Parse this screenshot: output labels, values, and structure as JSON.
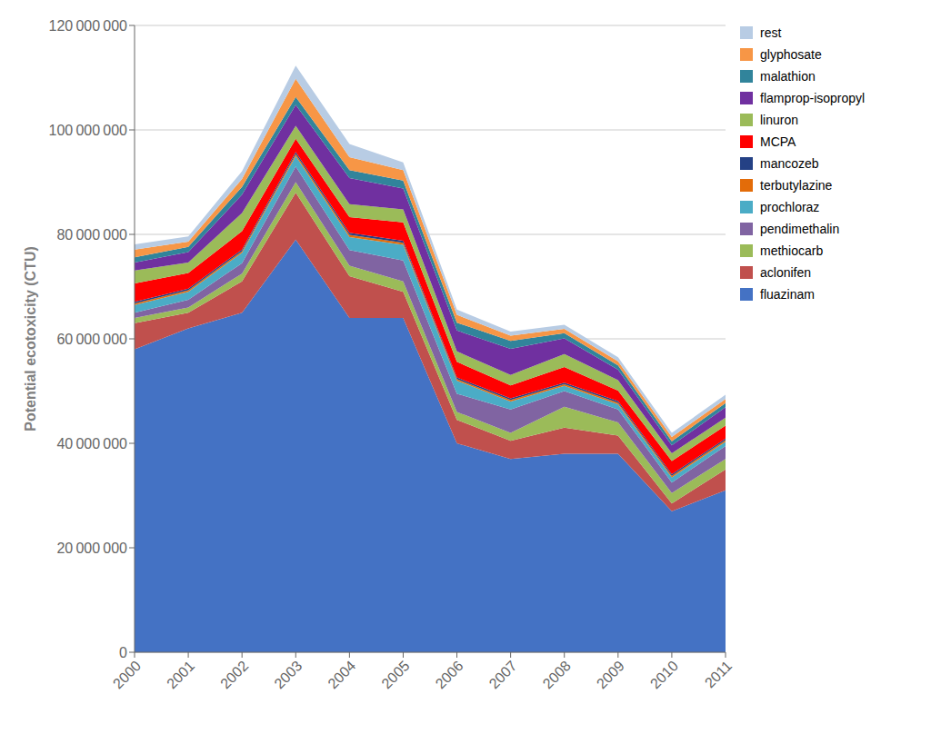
{
  "chart_data": {
    "type": "area",
    "stacked": true,
    "y_label": "Potential ecotoxicity (CTU)",
    "x": [
      2000,
      2001,
      2002,
      2003,
      2004,
      2005,
      2006,
      2007,
      2008,
      2009,
      2010,
      2011
    ],
    "xlim": [
      2000,
      2011
    ],
    "xticks": [
      2000,
      2001,
      2002,
      2003,
      2004,
      2005,
      2006,
      2007,
      2008,
      2009,
      2010,
      2011
    ],
    "ylim": [
      0,
      120000000
    ],
    "yticks": [
      0,
      {
        "value": 20000000,
        "label": "20 000 000"
      },
      {
        "value": 40000000,
        "label": "40 000 000"
      },
      {
        "value": 60000000,
        "label": "60 000 000"
      },
      {
        "value": 80000000,
        "label": "80 000 000"
      },
      {
        "value": 100000000,
        "label": "100 000 000"
      },
      {
        "value": 120000000,
        "label": "120 000 000"
      }
    ],
    "grid": true,
    "legend": "right",
    "series": [
      {
        "name": "fluazinam",
        "color": "#4472C4",
        "values": [
          58000000,
          62000000,
          65000000,
          79000000,
          64000000,
          64000000,
          40000000,
          37000000,
          38000000,
          38000000,
          27000000,
          31000000
        ]
      },
      {
        "name": "aclonifen",
        "color": "#C0504D",
        "values": [
          5000000,
          3000000,
          6000000,
          9000000,
          8000000,
          5000000,
          4500000,
          3500000,
          5000000,
          3500000,
          1500000,
          4000000
        ]
      },
      {
        "name": "methiocarb",
        "color": "#9BBB59",
        "values": [
          1000000,
          1000000,
          1500000,
          2000000,
          2000000,
          2000000,
          1500000,
          1500000,
          4000000,
          2500000,
          2000000,
          2000000
        ]
      },
      {
        "name": "pendimethalin",
        "color": "#8064A2",
        "values": [
          1000000,
          1500000,
          2000000,
          3000000,
          3000000,
          4000000,
          3500000,
          4500000,
          3000000,
          2500000,
          2000000,
          2500000
        ]
      },
      {
        "name": "prochloraz",
        "color": "#4BACC6",
        "values": [
          1500000,
          1500000,
          2000000,
          2000000,
          2500000,
          3000000,
          2500000,
          1500000,
          1000000,
          1000000,
          1000000,
          800000
        ]
      },
      {
        "name": "terbutylazine",
        "color": "#E36C09",
        "values": [
          300000,
          300000,
          300000,
          400000,
          400000,
          400000,
          300000,
          300000,
          300000,
          300000,
          300000,
          300000
        ]
      },
      {
        "name": "mancozeb",
        "color": "#244185",
        "values": [
          300000,
          300000,
          300000,
          400000,
          400000,
          400000,
          300000,
          300000,
          300000,
          300000,
          300000,
          300000
        ]
      },
      {
        "name": "MCPA",
        "color": "#FF0000",
        "values": [
          3500000,
          3000000,
          3500000,
          2500000,
          3000000,
          3500000,
          3000000,
          2500000,
          3000000,
          2000000,
          2500000,
          2500000
        ]
      },
      {
        "name": "linuron",
        "color": "#9BBB59",
        "values": [
          2500000,
          2000000,
          3500000,
          2500000,
          2500000,
          2500000,
          2000000,
          2000000,
          2500000,
          2000000,
          1500000,
          1500000
        ]
      },
      {
        "name": "flamprop-isopropyl",
        "color": "#7030A0",
        "values": [
          1500000,
          2000000,
          3500000,
          4000000,
          5000000,
          4000000,
          4000000,
          5000000,
          3000000,
          2000000,
          1500000,
          2000000
        ]
      },
      {
        "name": "malathion",
        "color": "#31849B",
        "values": [
          1000000,
          1000000,
          1500000,
          1500000,
          1500000,
          1500000,
          1500000,
          1500000,
          1000000,
          800000,
          800000,
          800000
        ]
      },
      {
        "name": "glyphosate",
        "color": "#F79646",
        "values": [
          1500000,
          1000000,
          1500000,
          3500000,
          2500000,
          2000000,
          1500000,
          1000000,
          800000,
          800000,
          800000,
          800000
        ]
      },
      {
        "name": "rest",
        "color": "#B8CCE4",
        "values": [
          1000000,
          1000000,
          1500000,
          2500000,
          2500000,
          1500000,
          1000000,
          800000,
          800000,
          800000,
          800000,
          800000
        ]
      }
    ]
  }
}
